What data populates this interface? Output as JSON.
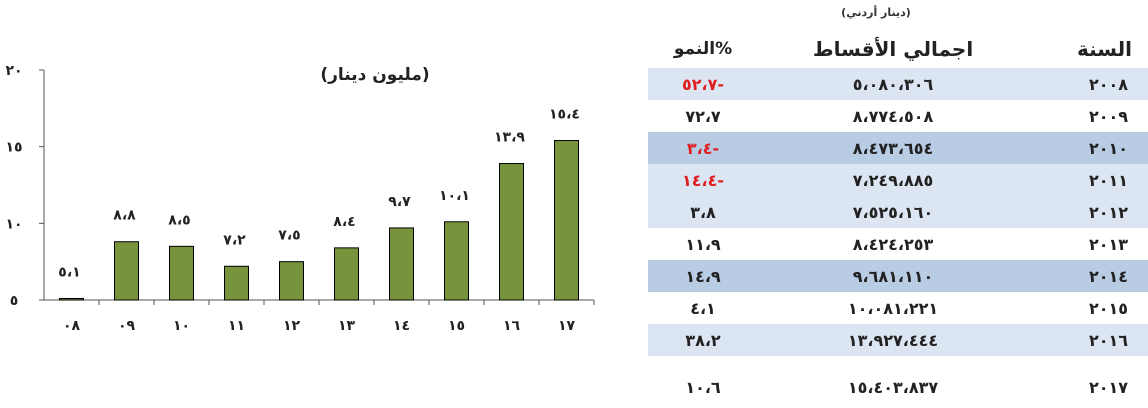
{
  "chart_data": {
    "type": "bar",
    "title": "(مليون دينار)",
    "categories": [
      "٠٨",
      "٠٩",
      "١٠",
      "١١",
      "١٢",
      "١٣",
      "١٤",
      "١٥",
      "١٦",
      "١٧"
    ],
    "values": [
      5.1,
      8.8,
      8.5,
      7.2,
      7.5,
      8.4,
      9.7,
      10.1,
      13.9,
      15.4
    ],
    "data_labels": [
      "٥،١",
      "٨،٨",
      "٨،٥",
      "٧،٢",
      "٧،٥",
      "٨،٤",
      "٩،٧",
      "١٠،١",
      "١٣،٩",
      "١٥،٤"
    ],
    "ylim": [
      5,
      20
    ],
    "yticks": [
      5,
      10,
      15,
      20
    ],
    "ytick_labels": [
      "٥",
      "١٠",
      "١٥",
      "٢٠"
    ],
    "bar_color": "#77933c",
    "bar_edge_color": "#000000",
    "grid": false,
    "legend": "none"
  },
  "table": {
    "unit_note": "(دينار أردني)",
    "headers": {
      "year": "السنة",
      "total": "اجمالي الأقساط",
      "growth": "النمو%"
    },
    "rows": [
      {
        "year": "٢٠٠٨",
        "total": "٥،٠٨٠،٣٠٦",
        "growth": "٥٢،٧-",
        "negative": true,
        "bg": "light"
      },
      {
        "year": "٢٠٠٩",
        "total": "٨،٧٧٤،٥٠٨",
        "growth": "٧٢،٧",
        "negative": false,
        "bg": "none"
      },
      {
        "year": "٢٠١٠",
        "total": "٨،٤٧٣،٦٥٤",
        "growth": "٣،٤-",
        "negative": true,
        "bg": "mid"
      },
      {
        "year": "٢٠١١",
        "total": "٧،٢٤٩،٨٨٥",
        "growth": "١٤،٤-",
        "negative": true,
        "bg": "light"
      },
      {
        "year": "٢٠١٢",
        "total": "٧،٥٢٥،١٦٠",
        "growth": "٣،٨",
        "negative": false,
        "bg": "light"
      },
      {
        "year": "٢٠١٣",
        "total": "٨،٤٢٤،٢٥٣",
        "growth": "١١،٩",
        "negative": false,
        "bg": "none"
      },
      {
        "year": "٢٠١٤",
        "total": "٩،٦٨١،١١٠",
        "growth": "١٤،٩",
        "negative": false,
        "bg": "mid"
      },
      {
        "year": "٢٠١٥",
        "total": "١٠،٠٨١،٢٢١",
        "growth": "٤،١",
        "negative": false,
        "bg": "none"
      },
      {
        "year": "٢٠١٦",
        "total": "١٣،٩٢٧،٤٤٤",
        "growth": "٣٨،٢",
        "negative": false,
        "bg": "light"
      },
      {
        "year": "٢٠١٧",
        "total": "١٥،٤٠٣،٨٣٧",
        "growth": "١٠،٦",
        "negative": false,
        "bg": "none"
      }
    ],
    "colors": {
      "row_light": "#dce6f2",
      "row_mid": "#b8cce4",
      "negative_text": "#e02020"
    }
  }
}
